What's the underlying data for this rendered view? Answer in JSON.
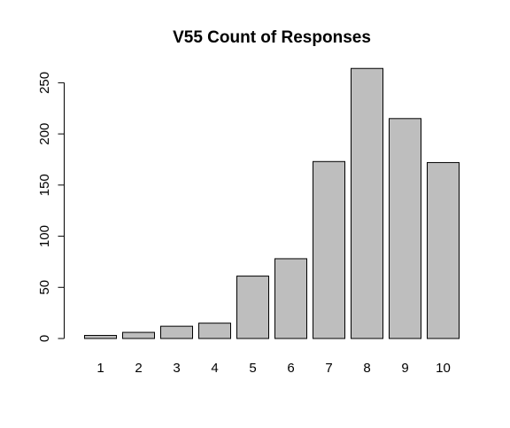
{
  "chart_data": {
    "type": "bar",
    "title": "V55 Count of Responses",
    "xlabel": "",
    "ylabel": "",
    "categories": [
      "1",
      "2",
      "3",
      "4",
      "5",
      "6",
      "7",
      "8",
      "9",
      "10"
    ],
    "values": [
      3,
      6,
      12,
      15,
      61,
      78,
      173,
      264,
      215,
      172
    ],
    "ylim": [
      0,
      264
    ],
    "yticks": [
      0,
      50,
      100,
      150,
      200,
      250
    ],
    "grid": false,
    "legend": "none",
    "colors": {
      "bar_fill": "#bebebe",
      "bar_stroke": "#000000",
      "axis": "#000000",
      "text": "#000000",
      "background": "#ffffff"
    }
  }
}
